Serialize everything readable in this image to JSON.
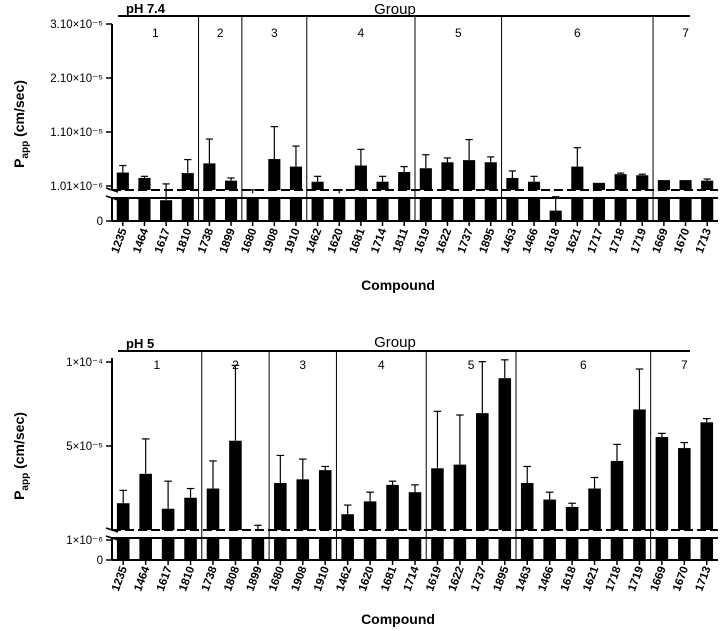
{
  "chart_data": [
    {
      "type": "bar",
      "panel": "top",
      "ph_label": "pH 7.4",
      "group_title": "Group",
      "groups": [
        {
          "label": "1",
          "compounds": [
            "1235",
            "1464",
            "1617",
            "1810"
          ]
        },
        {
          "label": "2",
          "compounds": [
            "1738",
            "1899"
          ]
        },
        {
          "label": "3",
          "compounds": [
            "1680",
            "1908",
            "1910"
          ]
        },
        {
          "label": "4",
          "compounds": [
            "1462",
            "1620",
            "1681",
            "1714",
            "1811"
          ]
        },
        {
          "label": "5",
          "compounds": [
            "1619",
            "1622",
            "1737",
            "1895"
          ]
        },
        {
          "label": "6",
          "compounds": [
            "1463",
            "1466",
            "1618",
            "1621",
            "1717",
            "1718",
            "1719"
          ]
        },
        {
          "label": "7",
          "compounds": [
            "1669",
            "1670",
            "1713"
          ]
        }
      ],
      "categories": [
        "1235",
        "1464",
        "1617",
        "1810",
        "1738",
        "1899",
        "1680",
        "1908",
        "1910",
        "1462",
        "1620",
        "1681",
        "1714",
        "1811",
        "1619",
        "1622",
        "1737",
        "1895",
        "1463",
        "1466",
        "1618",
        "1621",
        "1717",
        "1718",
        "1719",
        "1669",
        "1670",
        "1713"
      ],
      "values": [
        3.5e-06,
        2.5e-06,
        6e-07,
        3.4e-06,
        5.2e-06,
        2e-06,
        8e-07,
        6e-06,
        4.6e-06,
        1.8e-06,
        8e-07,
        4.8e-06,
        1.8e-06,
        3.6e-06,
        4.3e-06,
        5.4e-06,
        5.8e-06,
        5.4e-06,
        2.5e-06,
        1.8e-06,
        3e-07,
        4.6e-06,
        1.6e-06,
        3.2e-06,
        3e-06,
        2.1e-06,
        2.1e-06,
        2e-06
      ],
      "errors": [
        1.3e-06,
        3e-07,
        8e-07,
        2.5e-06,
        4.5e-06,
        5e-07,
        1e-07,
        6e-06,
        3.8e-06,
        1e-06,
        1e-07,
        3e-06,
        1e-06,
        1e-06,
        2.5e-06,
        8e-07,
        3.8e-06,
        1e-06,
        1.3e-06,
        1e-06,
        4e-07,
        3.5e-06,
        1e-07,
        2e-07,
        2e-07,
        1e-07,
        1e-07,
        3e-07
      ],
      "ylabel": "P",
      "ylabel_sub": "app",
      "ylabel_unit": " (cm/sec)",
      "xlabel": "Compound",
      "yticks": [
        "0",
        "1.01×10⁻⁶",
        "1.10×10⁻⁵",
        "2.10×10⁻⁵",
        "3.10×10⁻⁵"
      ],
      "ylim": [
        0,
        3.1e-05
      ],
      "axis_break": true
    },
    {
      "type": "bar",
      "panel": "bottom",
      "ph_label": "pH 5",
      "group_title": "Group",
      "groups": [
        {
          "label": "1",
          "compounds": [
            "1235",
            "1464",
            "1617",
            "1810"
          ]
        },
        {
          "label": "2",
          "compounds": [
            "1738",
            "1808",
            "1899"
          ]
        },
        {
          "label": "3",
          "compounds": [
            "1680",
            "1908",
            "1910"
          ]
        },
        {
          "label": "4",
          "compounds": [
            "1462",
            "1620",
            "1681",
            "1714"
          ]
        },
        {
          "label": "5",
          "compounds": [
            "1619",
            "1622",
            "1737",
            "1895"
          ]
        },
        {
          "label": "6",
          "compounds": [
            "1463",
            "1466",
            "1618",
            "1621",
            "1718",
            "1719"
          ]
        },
        {
          "label": "7",
          "compounds": [
            "1669",
            "1670",
            "1713"
          ]
        }
      ],
      "categories": [
        "1235",
        "1464",
        "1617",
        "1810",
        "1738",
        "1808",
        "1899",
        "1680",
        "1908",
        "1910",
        "1462",
        "1620",
        "1681",
        "1714",
        "1619",
        "1622",
        "1737",
        "1895",
        "1463",
        "1466",
        "1618",
        "1621",
        "1718",
        "1719",
        "1669",
        "1670",
        "1713"
      ],
      "values": [
        2.1e-05,
        3.7e-05,
        1.8e-05,
        2.4e-05,
        2.9e-05,
        5.5e-05,
        6e-06,
        3.2e-05,
        3.4e-05,
        3.9e-05,
        1.5e-05,
        2.2e-05,
        3.1e-05,
        2.7e-05,
        4e-05,
        4.2e-05,
        7e-05,
        8.9e-05,
        3.2e-05,
        2.3e-05,
        1.9e-05,
        2.9e-05,
        4.4e-05,
        7.2e-05,
        5.7e-05,
        5.1e-05,
        6.5e-05
      ],
      "errors": [
        7e-06,
        1.9e-05,
        1.5e-05,
        5e-06,
        1.5e-05,
        4.1e-05,
        3e-06,
        1.5e-05,
        1.1e-05,
        2e-06,
        5e-06,
        5e-06,
        2e-06,
        4e-06,
        3.1e-05,
        2.7e-05,
        2.8e-05,
        1e-05,
        9e-06,
        4e-06,
        2e-06,
        6e-06,
        9e-06,
        2.2e-05,
        2e-06,
        3e-06,
        2e-06
      ],
      "ylabel": "P",
      "ylabel_sub": "app",
      "ylabel_unit": " (cm/sec)",
      "xlabel": "Compound",
      "yticks": [
        "0",
        "1×10⁻⁶",
        "5×10⁻⁵",
        "1×10⁻⁴"
      ],
      "ylim": [
        0,
        0.0001
      ],
      "axis_break": true
    }
  ],
  "colors": {
    "bar": "#000000",
    "axis": "#000000",
    "background": "#ffffff"
  }
}
